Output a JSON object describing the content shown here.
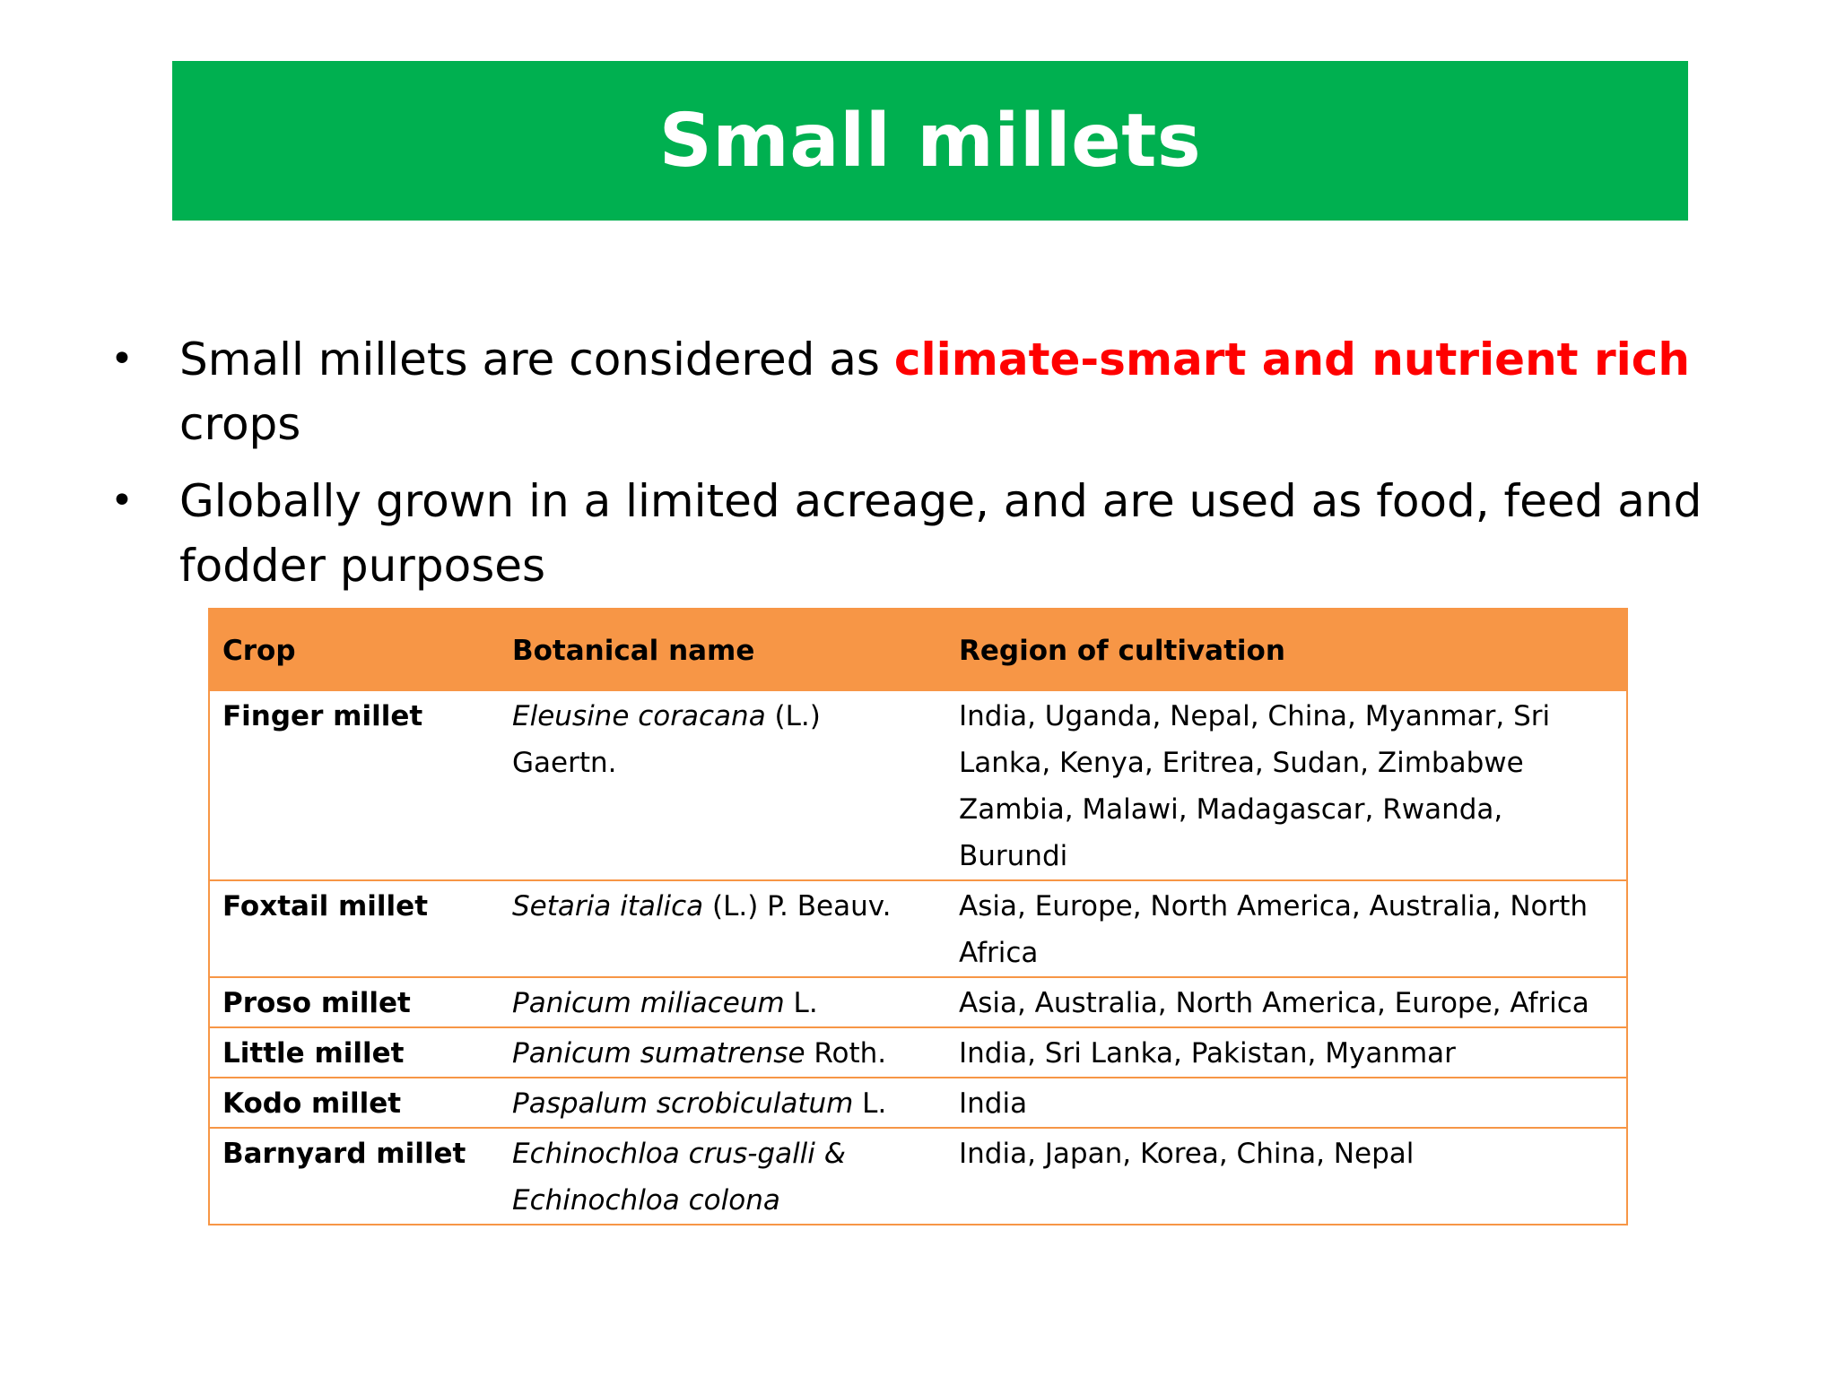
{
  "title": "Small millets",
  "bullets": [
    {
      "before": "Small millets are considered as ",
      "highlight": "climate-smart and nutrient rich",
      "after": " crops"
    },
    {
      "before": "Globally grown in a limited acreage, and are used as food, feed and fodder purposes",
      "highlight": "",
      "after": ""
    }
  ],
  "table": {
    "headers": [
      "Crop",
      "Botanical name",
      "Region of cultivation"
    ],
    "rows": [
      {
        "crop": "Finger millet",
        "bot_italic": "Eleusine coracana",
        "bot_rest": " (L.) Gaertn.",
        "bot_italic2": "",
        "region": "India, Uganda, Nepal, China, Myanmar, Sri Lanka, Kenya, Eritrea, Sudan, Zimbabwe Zambia, Malawi, Madagascar, Rwanda, Burundi"
      },
      {
        "crop": "Foxtail millet",
        "bot_italic": "Setaria italica",
        "bot_rest": " (L.) P. Beauv.",
        "bot_italic2": "",
        "region": "Asia, Europe, North America,  Australia, North Africa"
      },
      {
        "crop": "Proso millet",
        "bot_italic": "Panicum miliaceum",
        "bot_rest": " L.",
        "bot_italic2": "",
        "region": "Asia, Australia, North America, Europe, Africa"
      },
      {
        "crop": "Little millet",
        "bot_italic": "Panicum sumatrense",
        "bot_rest": " Roth.",
        "bot_italic2": "",
        "region": "India, Sri Lanka, Pakistan, Myanmar"
      },
      {
        "crop": "Kodo millet",
        "bot_italic": "Paspalum scrobiculatum",
        "bot_rest": " L.",
        "bot_italic2": "",
        "region": "India"
      },
      {
        "crop": "Barnyard millet",
        "bot_italic": "Echinochloa crus-galli &",
        "bot_rest": "",
        "bot_italic2": "Echinochloa colona",
        "region": "India, Japan, Korea, China, Nepal"
      }
    ]
  }
}
